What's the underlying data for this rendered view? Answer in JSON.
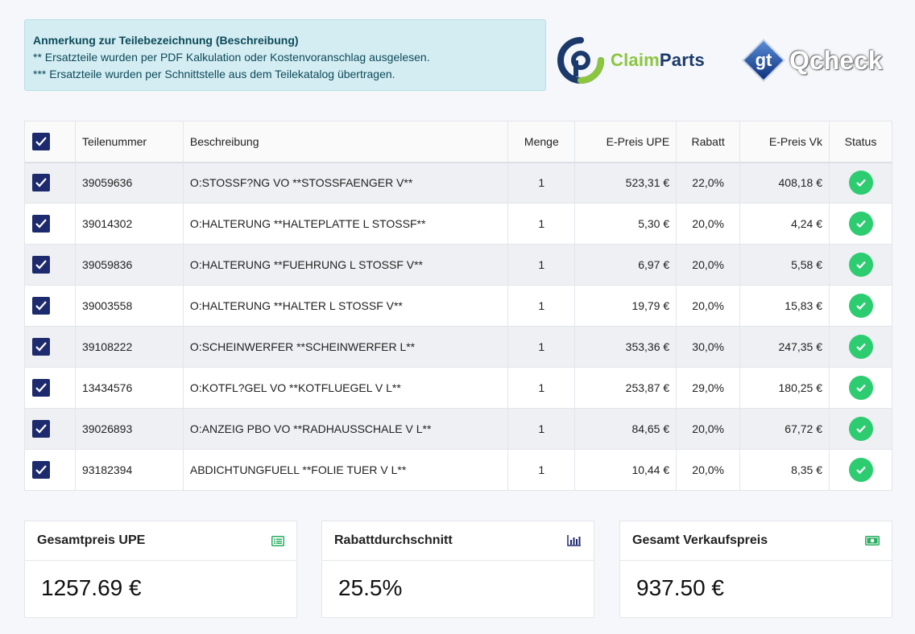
{
  "note": {
    "title": "Anmerkung zur Teilebezeichnung (Beschreibung)",
    "line1": "** Ersatzteile wurden per PDF Kalkulation oder Kostenvoranschlag ausgelesen.",
    "line2": "*** Ersatzteile wurden per Schnittstelle aus dem Teilekatalog übertragen."
  },
  "logos": {
    "claimparts_a": "Claim",
    "claimparts_b": "Parts",
    "gt_mark": "gt",
    "qcheck": "Qcheck",
    "claim_green": "#8cc63f",
    "claim_blue": "#1b3a6b"
  },
  "table": {
    "headers": {
      "part_number": "Teilenummer",
      "description": "Beschreibung",
      "quantity": "Menge",
      "price_upe": "E-Preis UPE",
      "discount": "Rabatt",
      "price_vk": "E-Preis Vk",
      "status": "Status"
    },
    "rows": [
      {
        "part_number": "39059636",
        "description": "O:STOSSF?NG VO **STOSSFAENGER V**",
        "quantity": "1",
        "price_upe": "523,31 €",
        "discount": "22,0%",
        "price_vk": "408,18 €"
      },
      {
        "part_number": "39014302",
        "description": "O:HALTERUNG **HALTEPLATTE L STOSSF**",
        "quantity": "1",
        "price_upe": "5,30 €",
        "discount": "20,0%",
        "price_vk": "4,24 €"
      },
      {
        "part_number": "39059836",
        "description": "O:HALTERUNG **FUEHRUNG L STOSSF V**",
        "quantity": "1",
        "price_upe": "6,97 €",
        "discount": "20,0%",
        "price_vk": "5,58 €"
      },
      {
        "part_number": "39003558",
        "description": "O:HALTERUNG **HALTER L STOSSF V**",
        "quantity": "1",
        "price_upe": "19,79 €",
        "discount": "20,0%",
        "price_vk": "15,83 €"
      },
      {
        "part_number": "39108222",
        "description": "O:SCHEINWERFER **SCHEINWERFER L**",
        "quantity": "1",
        "price_upe": "353,36 €",
        "discount": "30,0%",
        "price_vk": "247,35 €"
      },
      {
        "part_number": "13434576",
        "description": "O:KOTFL?GEL VO **KOTFLUEGEL V L**",
        "quantity": "1",
        "price_upe": "253,87 €",
        "discount": "29,0%",
        "price_vk": "180,25 €"
      },
      {
        "part_number": "39026893",
        "description": "O:ANZEIG PBO VO **RADHAUSSCHALE V L**",
        "quantity": "1",
        "price_upe": "84,65 €",
        "discount": "20,0%",
        "price_vk": "67,72 €"
      },
      {
        "part_number": "93182394",
        "description": "ABDICHTUNGFUELL **FOLIE TUER V L**",
        "quantity": "1",
        "price_upe": "10,44 €",
        "discount": "20,0%",
        "price_vk": "8,35 €"
      }
    ]
  },
  "summary": {
    "total_upe": {
      "label": "Gesamtpreis UPE",
      "value": "1257.69 €",
      "icon": "list-alt-icon"
    },
    "avg_discount": {
      "label": "Rabattdurchschnitt",
      "value": "25.5%",
      "icon": "bar-chart-icon"
    },
    "total_vk": {
      "label": "Gesamt Verkaufspreis",
      "value": "937.50 €",
      "icon": "money-bill-icon"
    }
  },
  "colors": {
    "checkbox": "#1d2a6e",
    "status_ok": "#2ecc71",
    "note_bg": "#d4edf2"
  }
}
